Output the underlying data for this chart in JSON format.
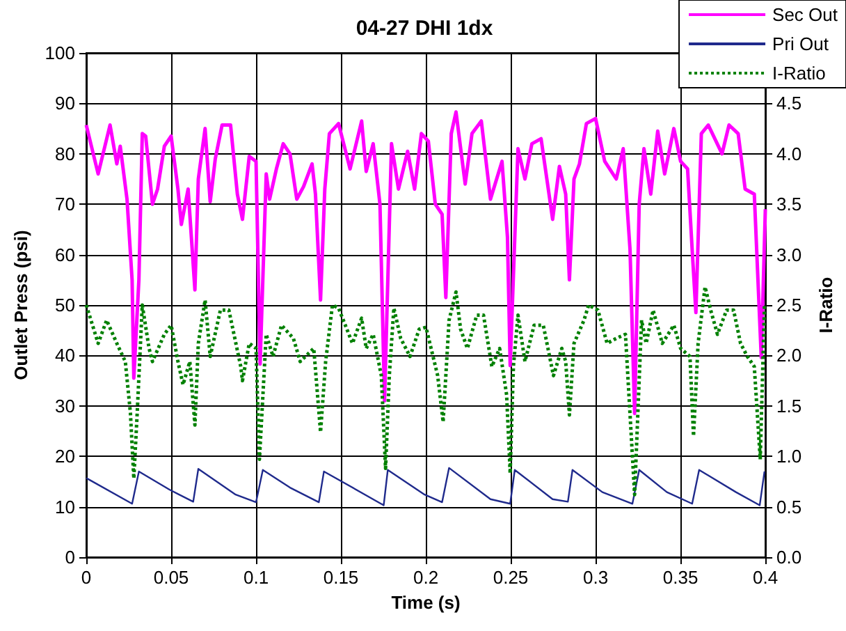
{
  "chart_data": {
    "type": "line",
    "title": "04-27 DHI 1dx",
    "xlabel": "Time (s)",
    "ylabel": "Outlet Press (psi)",
    "y2label": "I-Ratio",
    "xlim": [
      0,
      0.4
    ],
    "xticks": [
      0,
      0.05,
      0.1,
      0.15,
      0.2,
      0.25,
      0.3,
      0.35,
      0.4
    ],
    "ylim": [
      0,
      100
    ],
    "yticks": [
      0,
      10,
      20,
      30,
      40,
      50,
      60,
      70,
      80,
      90,
      100
    ],
    "y2lim": [
      0,
      5
    ],
    "y2ticks": [
      {
        "value": 0,
        "label": "0.0"
      },
      {
        "value": 0.5,
        "label": "0.5"
      },
      {
        "value": 1,
        "label": "1.0"
      },
      {
        "value": 1.5,
        "label": "1.5"
      },
      {
        "value": 2,
        "label": "2.0"
      },
      {
        "value": 2.5,
        "label": "2.5"
      },
      {
        "value": 3,
        "label": "3.0"
      },
      {
        "value": 3.5,
        "label": "3.5"
      },
      {
        "value": 4,
        "label": "4.0"
      },
      {
        "value": 4.5,
        "label": "4.5"
      },
      {
        "value": 5,
        "label": null
      }
    ],
    "grid": true,
    "legend": "top right",
    "marker": "none",
    "series": [
      {
        "name": "Sec Out",
        "color": "#ff00ff",
        "line_style": "solid",
        "x": [
          0,
          0.007,
          0.014,
          0.018,
          0.02,
          0.024,
          0.027,
          0.028,
          0.031,
          0.033,
          0.035,
          0.039,
          0.042,
          0.046,
          0.05,
          0.054,
          0.056,
          0.06,
          0.064,
          0.066,
          0.07,
          0.073,
          0.076,
          0.08,
          0.085,
          0.089,
          0.092,
          0.096,
          0.1,
          0.1024,
          0.106,
          0.108,
          0.112,
          0.116,
          0.12,
          0.124,
          0.128,
          0.133,
          0.135,
          0.138,
          0.1405,
          0.1432,
          0.1486,
          0.1554,
          0.1622,
          0.1649,
          0.169,
          0.173,
          0.1757,
          0.1798,
          0.1839,
          0.1893,
          0.1934,
          0.1974,
          0.2015,
          0.2056,
          0.2096,
          0.2118,
          0.215,
          0.2178,
          0.2232,
          0.2272,
          0.2327,
          0.2381,
          0.2449,
          0.2481,
          0.2497,
          0.2543,
          0.2584,
          0.2625,
          0.2679,
          0.2747,
          0.2787,
          0.2824,
          0.2846,
          0.2873,
          0.2905,
          0.2946,
          0.3,
          0.3054,
          0.3122,
          0.3163,
          0.3203,
          0.323,
          0.3257,
          0.3285,
          0.3325,
          0.3366,
          0.3407,
          0.3461,
          0.3501,
          0.3542,
          0.3569,
          0.3591,
          0.3623,
          0.3664,
          0.3745,
          0.3786,
          0.384,
          0.3881,
          0.3935,
          0.3976,
          0.4
        ],
        "values": [
          85.7,
          76,
          85.7,
          78,
          81.5,
          71,
          55,
          35.5,
          55,
          84,
          83.5,
          70,
          73,
          81.5,
          83.5,
          73,
          66,
          73,
          53,
          75,
          85,
          70.5,
          79,
          85.7,
          85.7,
          72,
          67,
          79.5,
          78.5,
          38.3,
          76,
          71,
          77,
          82,
          80,
          71,
          73.5,
          78,
          72,
          51,
          73,
          84,
          86,
          77,
          86.5,
          76.5,
          82,
          70,
          31,
          82,
          73,
          80.5,
          73,
          84,
          82.5,
          70,
          68,
          51.5,
          84,
          88.3,
          74,
          84,
          86.5,
          71,
          78.5,
          63.5,
          38,
          81,
          75,
          82,
          83,
          67,
          77.5,
          72,
          55,
          75,
          78,
          86,
          87,
          78.5,
          75,
          81,
          61,
          28.5,
          70,
          81,
          72,
          84.5,
          76,
          85,
          78.5,
          77,
          61,
          48.5,
          84,
          85.7,
          80,
          85.7,
          84,
          73,
          72,
          39.6,
          69
        ]
      },
      {
        "name": "Pri Out",
        "color": "#1f2a8c",
        "line_style": "solid",
        "x": [
          0,
          0.027,
          0.031,
          0.049,
          0.063,
          0.066,
          0.088,
          0.1,
          0.104,
          0.12,
          0.137,
          0.14,
          0.1752,
          0.1776,
          0.1993,
          0.2096,
          0.2137,
          0.2381,
          0.2497,
          0.2524,
          0.2747,
          0.2837,
          0.2864,
          0.304,
          0.3217,
          0.3257,
          0.342,
          0.3569,
          0.361,
          0.3827,
          0.3967,
          0.3995
        ],
        "values": [
          15.7,
          10.6,
          17,
          13.4,
          11,
          17.5,
          12.4,
          10.9,
          17.3,
          13.8,
          10.9,
          17,
          10.3,
          17.3,
          12.4,
          10.9,
          17.7,
          11.5,
          10.6,
          17.3,
          11.5,
          11,
          17.3,
          12.9,
          10.6,
          17.3,
          12.9,
          10.6,
          17.3,
          12.9,
          10.3,
          17
        ]
      },
      {
        "name": "I-Ratio",
        "color": "#008000",
        "line_style": "dotted",
        "axis": "y2",
        "x": [
          0,
          0.007,
          0.012,
          0.018,
          0.023,
          0.026,
          0.028,
          0.03,
          0.033,
          0.037,
          0.039,
          0.046,
          0.05,
          0.054,
          0.057,
          0.061,
          0.064,
          0.066,
          0.07,
          0.073,
          0.079,
          0.084,
          0.091,
          0.092,
          0.096,
          0.1,
          0.102,
          0.106,
          0.11,
          0.115,
          0.122,
          0.126,
          0.134,
          0.138,
          0.141,
          0.145,
          0.1486,
          0.1568,
          0.1622,
          0.1649,
          0.169,
          0.1738,
          0.1763,
          0.1785,
          0.1812,
          0.1852,
          0.1907,
          0.1961,
          0.2001,
          0.207,
          0.2102,
          0.2137,
          0.2178,
          0.2205,
          0.2245,
          0.23,
          0.234,
          0.2389,
          0.2435,
          0.2476,
          0.2497,
          0.2516,
          0.2543,
          0.2584,
          0.2638,
          0.2692,
          0.2752,
          0.2801,
          0.2824,
          0.2846,
          0.2873,
          0.2932,
          0.2959,
          0.3014,
          0.3068,
          0.3122,
          0.3176,
          0.323,
          0.3271,
          0.3298,
          0.3339,
          0.3393,
          0.3461,
          0.3501,
          0.3556,
          0.3577,
          0.3604,
          0.3645,
          0.3678,
          0.3718,
          0.3772,
          0.3813,
          0.3854,
          0.3894,
          0.3935,
          0.397,
          0.3995
        ],
        "values": [
          2.5,
          2.12,
          2.35,
          2.12,
          1.94,
          1.43,
          0.78,
          1.43,
          2.5,
          2.07,
          1.94,
          2.21,
          2.3,
          1.94,
          1.71,
          1.94,
          1.31,
          2.12,
          2.55,
          1.99,
          2.45,
          2.45,
          1.89,
          1.75,
          2.12,
          2.07,
          0.97,
          2.21,
          1.99,
          2.3,
          2.17,
          1.94,
          2.07,
          1.24,
          1.94,
          2.5,
          2.47,
          2.12,
          2.37,
          2.07,
          2.21,
          1.8,
          0.88,
          1.8,
          2.47,
          2.17,
          1.99,
          2.26,
          2.28,
          1.8,
          1.34,
          2.35,
          2.63,
          2.26,
          2.07,
          2.4,
          2.4,
          1.89,
          2.07,
          1.61,
          0.83,
          1.89,
          2.4,
          1.94,
          2.3,
          2.3,
          1.8,
          2.07,
          1.94,
          1.41,
          2.12,
          2.35,
          2.5,
          2.45,
          2.12,
          2.17,
          2.21,
          0.62,
          2.35,
          2.12,
          2.45,
          2.12,
          2.3,
          2.07,
          1.99,
          1.2,
          2.12,
          2.68,
          2.45,
          2.21,
          2.45,
          2.45,
          2.12,
          1.99,
          1.89,
          0.97,
          2.5
        ]
      }
    ]
  }
}
